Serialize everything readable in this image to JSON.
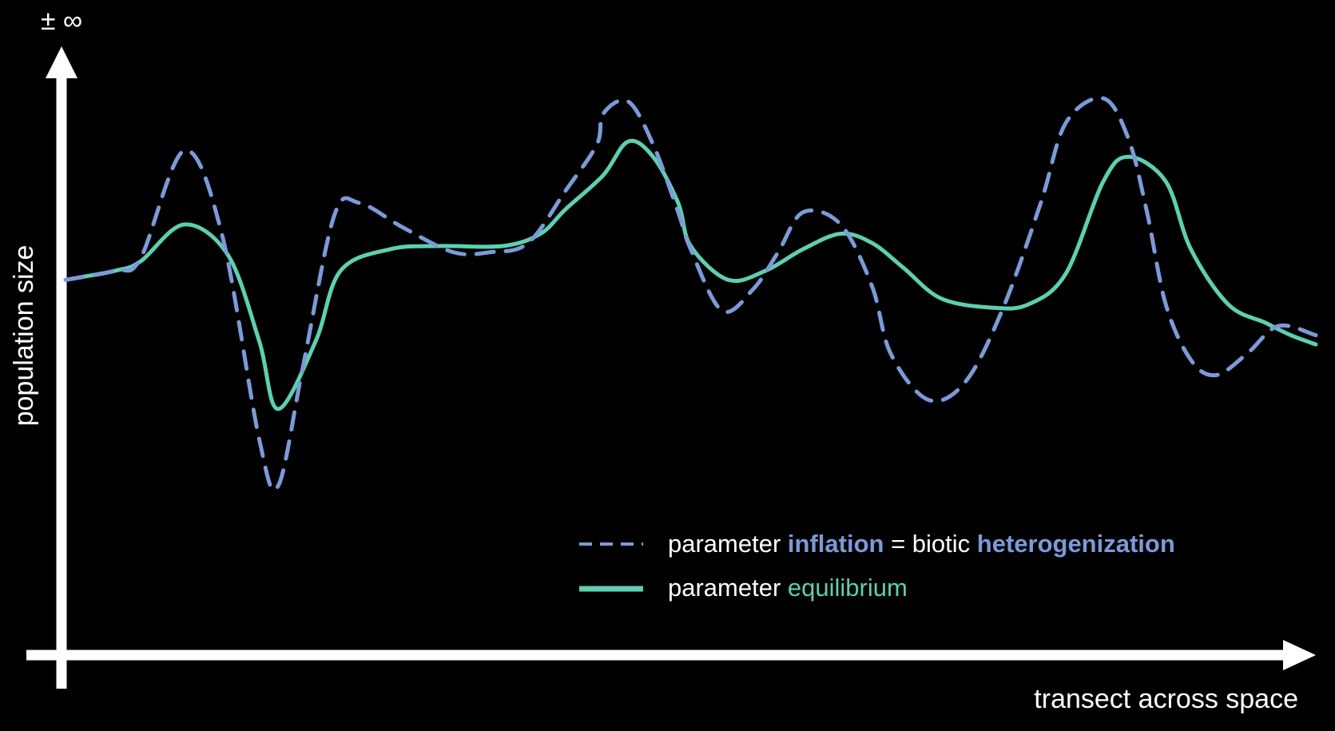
{
  "chart_data": {
    "type": "line",
    "y_axis_top_label": "± ∞",
    "ylabel": "population size",
    "xlabel": "transect across space",
    "xlim": [
      0,
      1
    ],
    "ylim": [
      0,
      1
    ],
    "grid": false,
    "legend": {
      "placement": "bottom-right",
      "entries": [
        {
          "series": "inflation",
          "line_style": "dashed",
          "parts": [
            {
              "text": "parameter",
              "color": "#ffffff",
              "bold": false
            },
            {
              "text": "inflation",
              "color": "#7b9ad8",
              "bold": true
            },
            {
              "text": "= biotic",
              "color": "#ffffff",
              "bold": false
            },
            {
              "text": "heterogenization",
              "color": "#7b9ad8",
              "bold": true
            }
          ]
        },
        {
          "series": "equilibrium",
          "line_style": "solid",
          "parts": [
            {
              "text": "parameter",
              "color": "#ffffff",
              "bold": false
            },
            {
              "text": "equilibrium",
              "color": "#5ecfb1",
              "bold": false
            }
          ]
        }
      ]
    },
    "series": [
      {
        "key": "inflation",
        "style": "dashed",
        "color": "#7b9ad8",
        "x": [
          0.0,
          0.04,
          0.06,
          0.095,
          0.125,
          0.155,
          0.17,
          0.19,
          0.215,
          0.235,
          0.27,
          0.31,
          0.34,
          0.37,
          0.4,
          0.425,
          0.43,
          0.45,
          0.47,
          0.49,
          0.5,
          0.525,
          0.55,
          0.57,
          0.59,
          0.62,
          0.645,
          0.66,
          0.69,
          0.72,
          0.75,
          0.78,
          0.8,
          0.83,
          0.85,
          0.865,
          0.88,
          0.9,
          0.92,
          0.945,
          0.97,
          1.0
        ],
        "y": [
          0.61,
          0.625,
          0.645,
          0.82,
          0.685,
          0.35,
          0.275,
          0.47,
          0.715,
          0.735,
          0.695,
          0.655,
          0.655,
          0.67,
          0.755,
          0.83,
          0.88,
          0.9,
          0.83,
          0.72,
          0.66,
          0.56,
          0.595,
          0.655,
          0.72,
          0.7,
          0.6,
          0.49,
          0.415,
          0.445,
          0.565,
          0.735,
          0.865,
          0.905,
          0.84,
          0.72,
          0.57,
          0.48,
          0.455,
          0.49,
          0.535,
          0.52
        ]
      },
      {
        "key": "equilibrium",
        "style": "solid",
        "color": "#5ecfb1",
        "x": [
          0.0,
          0.04,
          0.06,
          0.095,
          0.13,
          0.155,
          0.17,
          0.2,
          0.22,
          0.26,
          0.3,
          0.35,
          0.38,
          0.4,
          0.43,
          0.45,
          0.47,
          0.49,
          0.5,
          0.53,
          0.56,
          0.59,
          0.62,
          0.645,
          0.67,
          0.7,
          0.74,
          0.77,
          0.8,
          0.83,
          0.85,
          0.88,
          0.9,
          0.93,
          0.96,
          0.98,
          1.0
        ],
        "y": [
          0.61,
          0.625,
          0.64,
          0.7,
          0.65,
          0.51,
          0.4,
          0.51,
          0.625,
          0.66,
          0.665,
          0.665,
          0.685,
          0.725,
          0.78,
          0.835,
          0.81,
          0.735,
          0.665,
          0.61,
          0.625,
          0.66,
          0.685,
          0.67,
          0.63,
          0.58,
          0.565,
          0.57,
          0.62,
          0.77,
          0.81,
          0.77,
          0.66,
          0.57,
          0.54,
          0.52,
          0.505
        ]
      }
    ]
  }
}
